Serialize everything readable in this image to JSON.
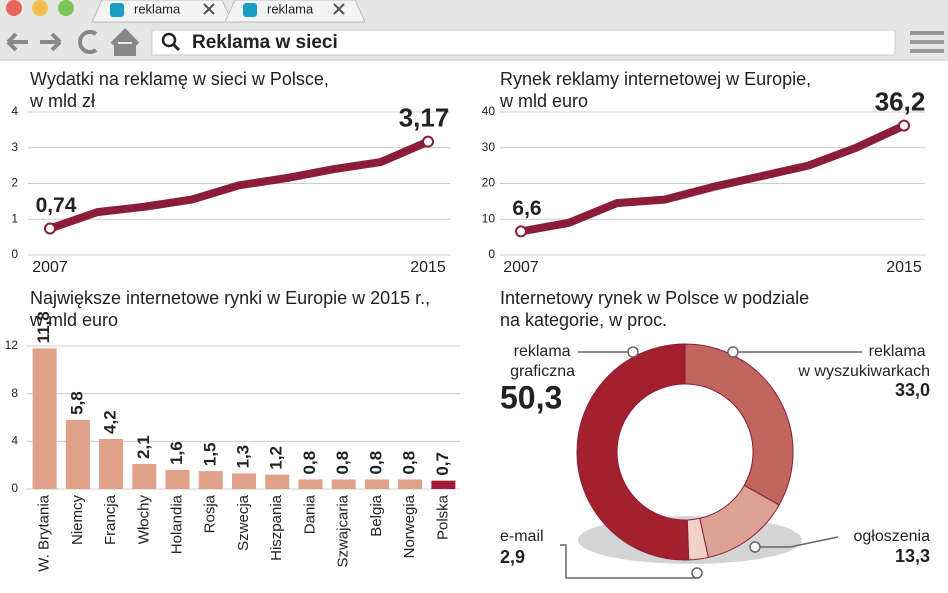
{
  "browser": {
    "tabs": [
      "reklama",
      "reklama"
    ],
    "address": "Reklama w sieci"
  },
  "chart_data": [
    {
      "type": "line",
      "title": [
        "Wydatki na reklamę w sieci w Polsce,",
        "w mld zł"
      ],
      "x": [
        2007,
        2008,
        2009,
        2010,
        2011,
        2012,
        2013,
        2014,
        2015
      ],
      "xlim": [
        2007,
        2015
      ],
      "xticks": [
        2007,
        2015
      ],
      "ylim": [
        0,
        4
      ],
      "yticks": [
        0,
        1,
        2,
        3,
        4
      ],
      "grid": true,
      "series": [
        {
          "color": "#8c1d3a",
          "values": [
            0.74,
            1.2,
            1.35,
            1.55,
            1.95,
            2.15,
            2.4,
            2.6,
            3.17
          ],
          "value_labels": [
            "0,74",
            null,
            null,
            null,
            null,
            null,
            null,
            null,
            "3,17"
          ]
        }
      ]
    },
    {
      "type": "line",
      "title": [
        "Rynek reklamy internetowej w Europie,",
        "w mld euro"
      ],
      "x": [
        2007,
        2008,
        2009,
        2010,
        2011,
        2012,
        2013,
        2014,
        2015
      ],
      "xlim": [
        2007,
        2015
      ],
      "xticks": [
        2007,
        2015
      ],
      "ylim": [
        0,
        40
      ],
      "yticks": [
        0,
        10,
        20,
        30,
        40
      ],
      "grid": true,
      "series": [
        {
          "color": "#8c1d3a",
          "values": [
            6.6,
            9,
            14.5,
            15.5,
            19,
            22,
            25,
            30,
            36.2
          ],
          "value_labels": [
            "6,6",
            null,
            null,
            null,
            null,
            null,
            null,
            null,
            "36,2"
          ]
        }
      ]
    },
    {
      "type": "bar",
      "title": [
        "Największe internetowe rynki w Europie w 2015 r.,",
        "w mld euro"
      ],
      "categories": [
        "W. Brytania",
        "Niemcy",
        "Francja",
        "Włochy",
        "Holandia",
        "Rosja",
        "Szwecja",
        "Hiszpania",
        "Dania",
        "Szwajcaria",
        "Belgia",
        "Norwegia",
        "Polska"
      ],
      "values": [
        11.8,
        5.8,
        4.2,
        2.1,
        1.6,
        1.5,
        1.3,
        1.2,
        0.8,
        0.8,
        0.8,
        0.8,
        0.7
      ],
      "value_labels": [
        "11,8",
        "5,8",
        "4,2",
        "2,1",
        "1,6",
        "1,5",
        "1,3",
        "1,2",
        "0,8",
        "0,8",
        "0,8",
        "0,8",
        "0,7"
      ],
      "colors": [
        "#e0a08a",
        "#e0a08a",
        "#e0a08a",
        "#e0a08a",
        "#e0a08a",
        "#e0a08a",
        "#e0a08a",
        "#e0a08a",
        "#e0a08a",
        "#e0a08a",
        "#e0a08a",
        "#e0a08a",
        "#a01c3a"
      ],
      "ylim": [
        0,
        12
      ],
      "yticks": [
        0,
        4,
        8,
        12
      ],
      "grid": true
    },
    {
      "type": "pie",
      "title": [
        "Internetowy rynek w Polsce w podziale",
        "na kategorie, w proc."
      ],
      "categories": [
        "reklama graficzna",
        "reklama w wyszukiwarkach",
        "ogłoszenia",
        "e-mail"
      ],
      "values": [
        50.3,
        33.0,
        13.3,
        2.9
      ],
      "value_labels": [
        "50,3",
        "33,0",
        "13,3",
        "2,9"
      ],
      "colors": [
        "#a3202f",
        "#c0665e",
        "#dca296",
        "#f2d2c8"
      ]
    }
  ]
}
